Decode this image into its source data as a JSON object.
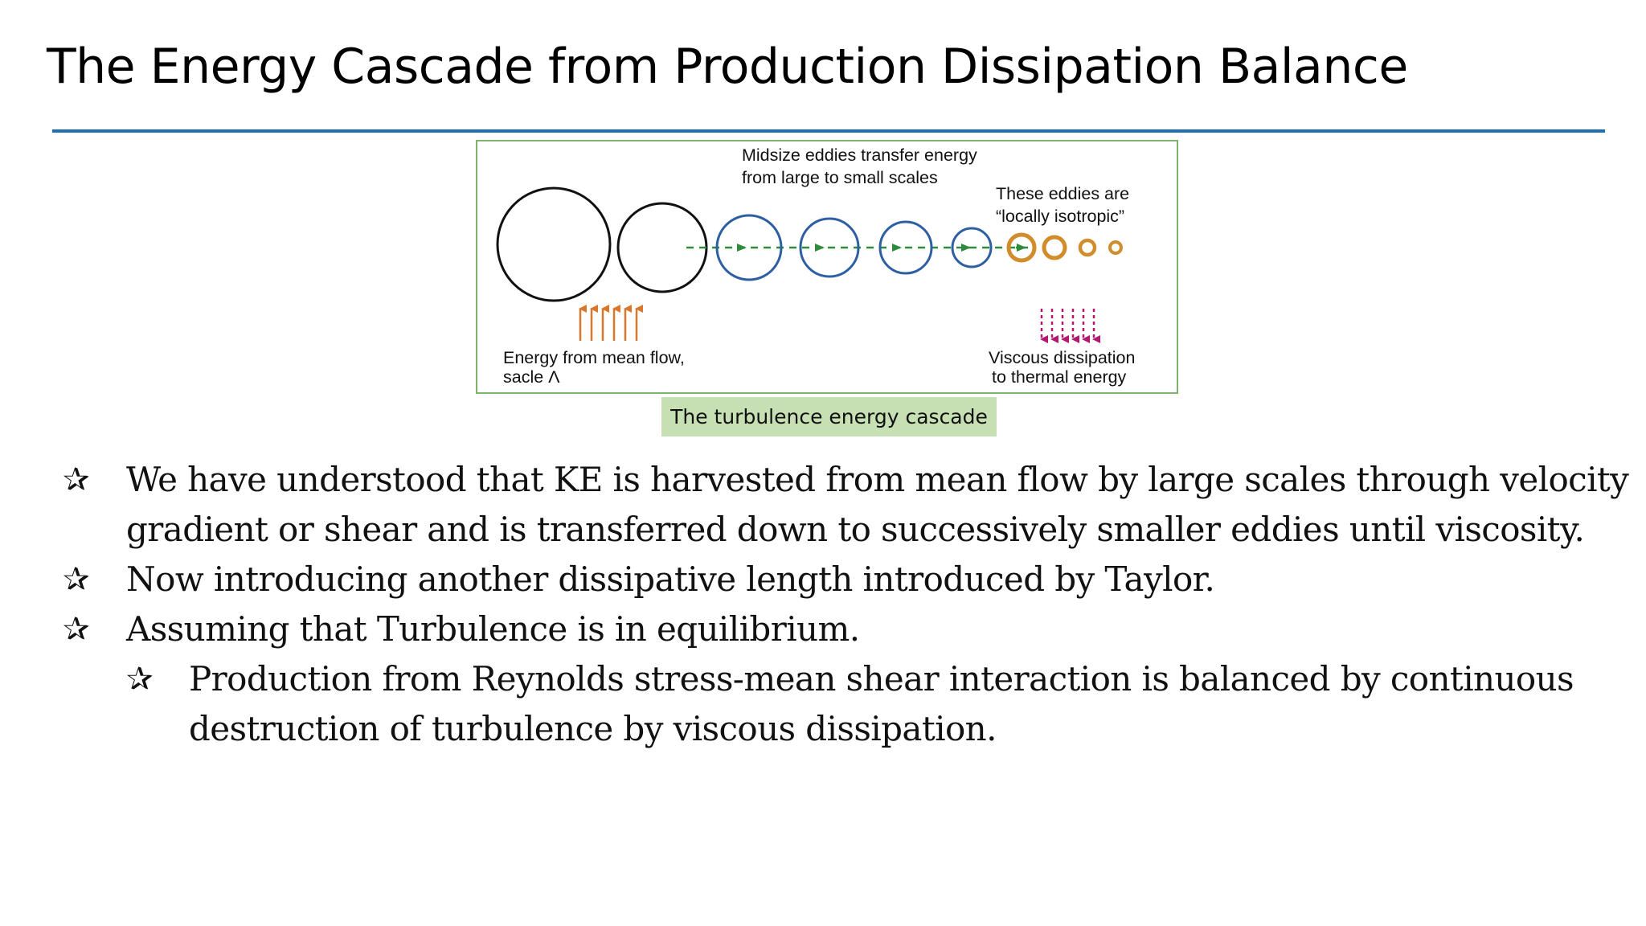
{
  "slide": {
    "title": "The Energy Cascade from Production Dissipation Balance"
  },
  "figure": {
    "top_label_line1": "Midsize eddies transfer energy",
    "top_label_line2": "from large to small scales",
    "right_label_line1": "These eddies are",
    "right_label_line2": "“locally isotropic”",
    "left_bottom_line1": "Energy from mean flow,",
    "left_bottom_line2": "sacle Λ",
    "right_bottom_line1": "Viscous dissipation",
    "right_bottom_line2": "to thermal energy",
    "colors": {
      "border": "#7fb56a",
      "large_eddy": "#111111",
      "mid_eddy": "#2f5fa3",
      "small_eddy": "#d18c2c",
      "transfer_arrow": "#2e8b3a",
      "energy_arrow": "#d9782d",
      "dissipation_arrow": "#b3176f"
    }
  },
  "caption": "The turbulence energy cascade",
  "bullets": [
    {
      "level": 1,
      "line1": "We have understood that KE is harvested from mean flow by large scales through velocity",
      "line2": "gradient or shear and is transferred down to successively smaller eddies until viscosity."
    },
    {
      "level": 1,
      "line1": "Now introducing another dissipative length introduced by Taylor."
    },
    {
      "level": 1,
      "line1": "Assuming that Turbulence is in equilibrium."
    },
    {
      "level": 2,
      "line1": "Production from Reynolds stress-mean shear interaction is balanced by continuous",
      "line2": "destruction of  turbulence by viscous dissipation."
    }
  ],
  "bullet_symbol": "✰"
}
